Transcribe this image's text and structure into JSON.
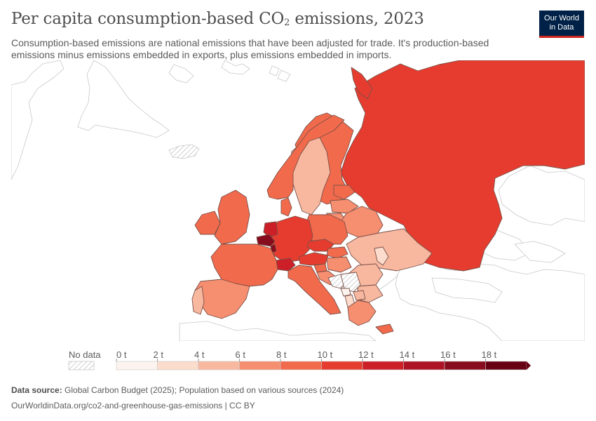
{
  "header": {
    "title_main": "Per capita consumption-based CO",
    "title_sub": "2",
    "title_tail": " emissions, 2023",
    "subtitle": "Consumption-based emissions are national emissions that have been adjusted for trade. It's production-based emissions minus emissions embedded in exports, plus emissions embedded in imports.",
    "logo_line1": "Our World",
    "logo_line2": "in Data"
  },
  "legend": {
    "no_data_label": "No data",
    "bins": [
      {
        "label": "0 t",
        "color": "#fdf3ee"
      },
      {
        "label": "2 t",
        "color": "#fbdccd"
      },
      {
        "label": "4 t",
        "color": "#f8b8a0"
      },
      {
        "label": "6 t",
        "color": "#f68e70"
      },
      {
        "label": "8 t",
        "color": "#f26a4c"
      },
      {
        "label": "10 t",
        "color": "#e63c2f"
      },
      {
        "label": "12 t",
        "color": "#cd1f28"
      },
      {
        "label": "14 t",
        "color": "#ad1225"
      },
      {
        "label": "16 t",
        "color": "#870c1d"
      },
      {
        "label": "18 t",
        "color": "#670013"
      }
    ]
  },
  "regions": [
    {
      "name": "iceland",
      "value": null
    },
    {
      "name": "norway",
      "value": 8.5
    },
    {
      "name": "sweden",
      "value": 4.5
    },
    {
      "name": "finland",
      "value": 9.2
    },
    {
      "name": "russia",
      "value": 10.6
    },
    {
      "name": "estonia",
      "value": 9.5
    },
    {
      "name": "latvia",
      "value": 7.0
    },
    {
      "name": "lithuania",
      "value": 7.3
    },
    {
      "name": "belarus",
      "value": 6.6
    },
    {
      "name": "ukraine",
      "value": 4.2
    },
    {
      "name": "moldova",
      "value": 3.0
    },
    {
      "name": "poland",
      "value": 8.5
    },
    {
      "name": "germany",
      "value": 10.0
    },
    {
      "name": "denmark",
      "value": 9.6
    },
    {
      "name": "netherlands",
      "value": 12.5
    },
    {
      "name": "belgium",
      "value": 17.5
    },
    {
      "name": "luxembourg",
      "value": 16.0
    },
    {
      "name": "czechia",
      "value": 10.5
    },
    {
      "name": "slovakia",
      "value": 9.0
    },
    {
      "name": "austria",
      "value": 11.2
    },
    {
      "name": "switzerland",
      "value": 13.5
    },
    {
      "name": "hungary",
      "value": 7.0
    },
    {
      "name": "romania",
      "value": 4.5
    },
    {
      "name": "bulgaria",
      "value": 5.2
    },
    {
      "name": "slovenia",
      "value": 9.6
    },
    {
      "name": "croatia",
      "value": 7.0
    },
    {
      "name": "bosnia",
      "value": null
    },
    {
      "name": "serbia",
      "value": null
    },
    {
      "name": "montenegro",
      "value": 0.5
    },
    {
      "name": "albania",
      "value": 2.1
    },
    {
      "name": "north-macedonia",
      "value": 4.4
    },
    {
      "name": "greece",
      "value": 7.2
    },
    {
      "name": "italy",
      "value": 8.3
    },
    {
      "name": "france",
      "value": 8.2
    },
    {
      "name": "spain",
      "value": 6.6
    },
    {
      "name": "portugal",
      "value": 5.8
    },
    {
      "name": "united-kingdom",
      "value": 8.1
    },
    {
      "name": "ireland",
      "value": 8.7
    },
    {
      "name": "cyprus",
      "value": 8.0
    }
  ],
  "footer": {
    "source_label": "Data source:",
    "source_text": " Global Carbon Budget (2025); Population based on various sources (2024)",
    "url": "OurWorldinData.org/co2-and-greenhouse-gas-emissions | CC BY"
  }
}
